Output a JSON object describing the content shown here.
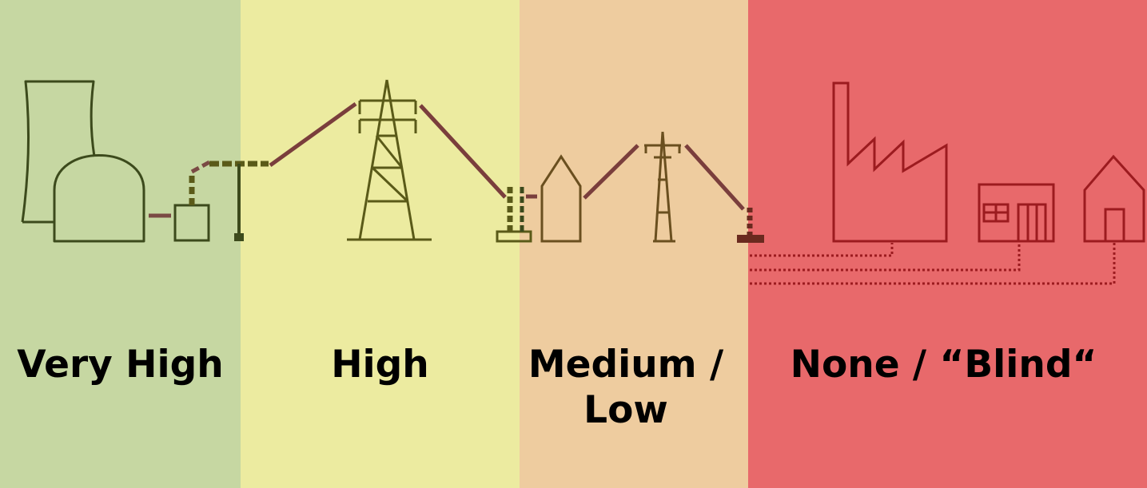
{
  "bands": [
    {
      "label": "Very High",
      "color": "#c6d7a2"
    },
    {
      "label": "High",
      "color": "#eceba0"
    },
    {
      "label": "Medium / Low",
      "color": "#eecc9f"
    },
    {
      "label": "None / “Blind“",
      "color": "#e8696b"
    }
  ],
  "icons": [
    "power-plant-icon",
    "transformer-icon",
    "high-voltage-tower-icon",
    "substation-icon",
    "small-building-icon",
    "distribution-tower-icon",
    "factory-icon",
    "shop-icon",
    "house-icon"
  ],
  "stroke_colors": {
    "very_high": "#3c4a1c",
    "high": "#5a5a18",
    "medium_low": "#6a4f1f",
    "none": "#9c1b1f",
    "line": "#7a3e3c"
  }
}
